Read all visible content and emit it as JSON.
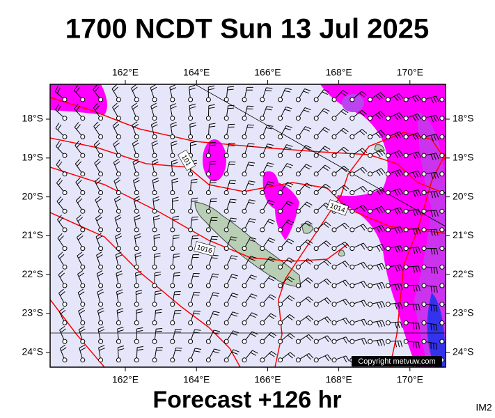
{
  "title": "1700 NCDT Sun 13 Jul 2025",
  "footer": "Forecast +126 hr",
  "image_id": "IM2",
  "map": {
    "longitude_labels": [
      "162°E",
      "164°E",
      "166°E",
      "168°E",
      "170°E"
    ],
    "latitude_labels": [
      "18°S",
      "19°S",
      "20°S",
      "21°S",
      "22°S",
      "23°S",
      "24°S"
    ],
    "isobar_labels": [
      "101",
      "1014",
      "1016"
    ],
    "copyright": "Copyright metvuw.com"
  }
}
